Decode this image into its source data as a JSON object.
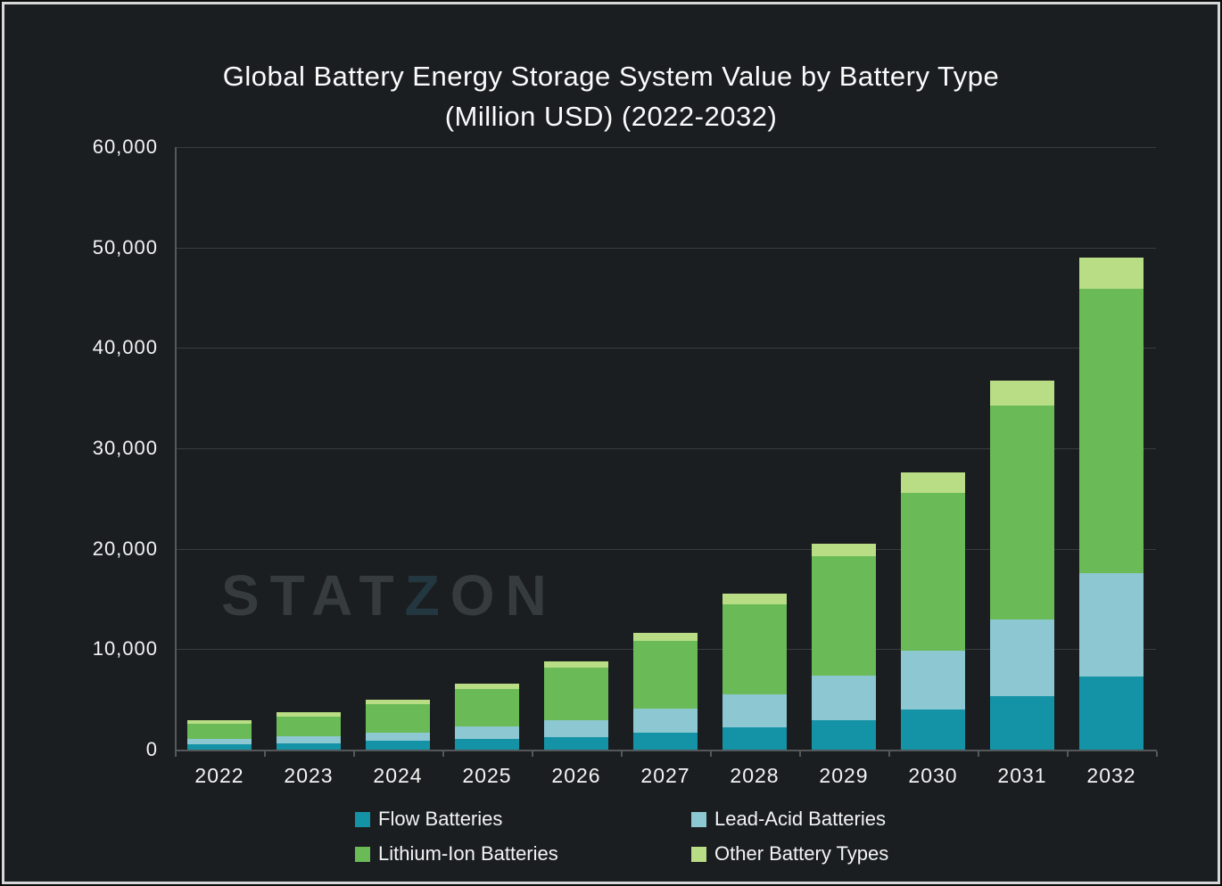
{
  "title": {
    "line1": "Global Battery Energy Storage System Value by Battery Type",
    "line2": "(Million USD) (2022-2032)"
  },
  "watermark": {
    "left": "STAT",
    "z": "Z",
    "right": "ON"
  },
  "colors": {
    "background": "#1b1e20",
    "grid": "#393d3f",
    "axis": "#54585a",
    "text": "#f2f4f4",
    "frame_border": "#d6d7d7",
    "flow": "#1593a6",
    "lead_acid": "#8cc7d2",
    "lithium_ion": "#6abb58",
    "other": "#b8dd84"
  },
  "chart_data": {
    "type": "bar",
    "stacked": true,
    "title": "Global Battery Energy Storage System Value by Battery Type (Million USD) (2022-2032)",
    "xlabel": "",
    "ylabel": "",
    "categories": [
      "2022",
      "2023",
      "2024",
      "2025",
      "2026",
      "2027",
      "2028",
      "2029",
      "2030",
      "2031",
      "2032"
    ],
    "series": [
      {
        "name": "Flow Batteries",
        "color": "#1593a6",
        "values": [
          550,
          660,
          890,
          1040,
          1270,
          1710,
          2240,
          2950,
          4020,
          5350,
          7300
        ]
      },
      {
        "name": "Lead-Acid Batteries",
        "color": "#8cc7d2",
        "values": [
          550,
          680,
          810,
          1270,
          1690,
          2370,
          3230,
          4390,
          5830,
          7600,
          10300
        ]
      },
      {
        "name": "Lithium-Ion Batteries",
        "color": "#6abb58",
        "values": [
          1450,
          1950,
          2820,
          3690,
          5210,
          6740,
          8960,
          11960,
          15750,
          21300,
          28300
        ]
      },
      {
        "name": "Other Battery Types",
        "color": "#b8dd84",
        "values": [
          350,
          450,
          480,
          550,
          590,
          800,
          1130,
          1190,
          2000,
          2500,
          3100
        ]
      }
    ],
    "totals": [
      2900,
      3740,
      5000,
      6550,
      8760,
      11620,
      15560,
      20490,
      27600,
      36750,
      49000
    ],
    "ylim": [
      0,
      60000
    ],
    "ytick_step": 10000,
    "ytick_labels": [
      "0",
      "10,000",
      "20,000",
      "30,000",
      "40,000",
      "50,000",
      "60,000"
    ],
    "grid": true,
    "legend_position": "bottom"
  }
}
